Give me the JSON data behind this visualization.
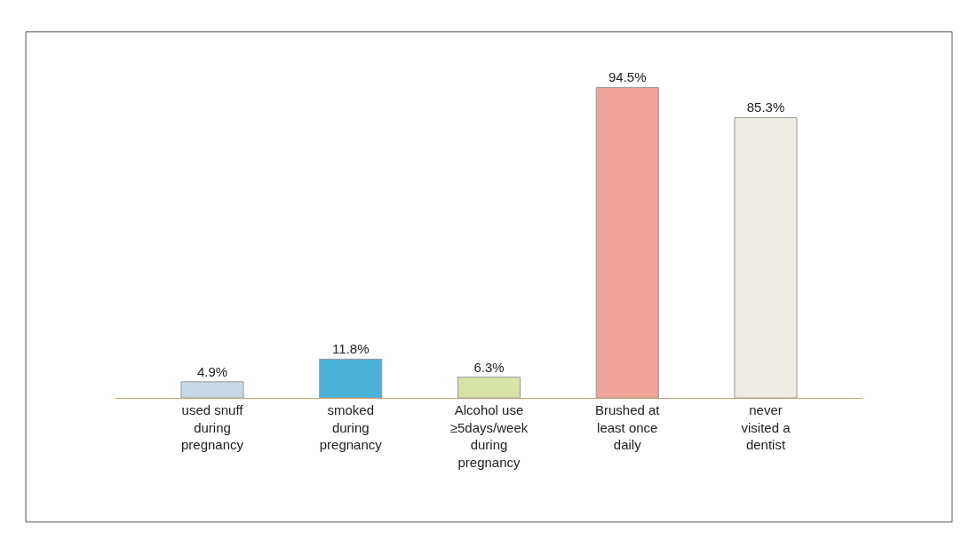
{
  "chart_data": {
    "type": "bar",
    "categories": [
      "used snuff during pregnancy",
      "smoked during pregnancy",
      "Alcohol use ≥5days/week during pregnancy",
      "Brushed at least once daily",
      "never visited a dentist"
    ],
    "values": [
      4.9,
      11.8,
      6.3,
      94.5,
      85.3
    ],
    "value_labels": [
      "4.9%",
      "11.8%",
      "6.3%",
      "94.5%",
      "85.3%"
    ],
    "colors": [
      "#c8d8e6",
      "#4bb2d8",
      "#d6e4a6",
      "#f2a49a",
      "#eeebe3"
    ],
    "legend": false
  }
}
